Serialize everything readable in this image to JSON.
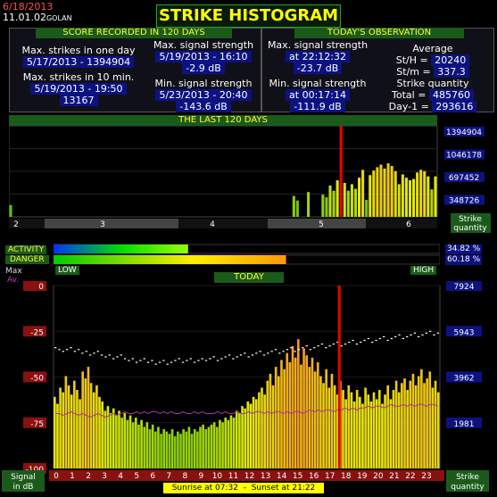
{
  "header": {
    "date": "6/18/2013",
    "version": "11.01.02",
    "location": "GOLAN",
    "title": "STRIKE HISTOGRAM"
  },
  "score": {
    "heading": "SCORE RECORDED IN 120 DAYS",
    "max_one_day_label": "Max. strikes in one day",
    "max_one_day_value": "5/17/2013 - 1394904",
    "max_10min_label": "Max. strikes in 10 min.",
    "max_10min_date": "5/19/2013 - 19:50",
    "max_10min_value": "13167",
    "max_signal_label": "Max. signal strength",
    "max_signal_date": "5/19/2013 - 16:10",
    "max_signal_value": "-2.9 dB",
    "min_signal_label": "Min. signal strength",
    "min_signal_date": "5/23/2013 - 20:40",
    "min_signal_value": "-143.6 dB"
  },
  "today_obs": {
    "heading": "TODAY'S OBSERVATION",
    "max_signal_label": "Max. signal strength",
    "max_signal_time": "at 22:12:32",
    "max_signal_value": "-23.7 dB",
    "min_signal_label": "Min. signal strength",
    "min_signal_time": "at 00:17:14",
    "min_signal_value": "-111.9 dB",
    "average_label": "Average",
    "sth_label": "St/H",
    "sth_value": "20240",
    "stm_label": "St/m",
    "stm_value": "337.3",
    "quantity_label": "Strike quantity",
    "total_label": "Total",
    "total_value": "485760",
    "day1_label": "Day-1",
    "day1_value": "293616"
  },
  "activity": {
    "activity_label": "ACTIVITY",
    "danger_label": "DANGER",
    "activity_value": 34.82,
    "danger_value": 60.18,
    "activity_text": "34.82 %",
    "danger_text": "60.18 %",
    "low_label": "LOW",
    "high_label": "HIGH"
  },
  "footer": {
    "sunrise_label": "Sunrise at",
    "sunrise_time": "07:32",
    "sunset_label": "Sunset at",
    "sunset_time": "21:22"
  },
  "chart_data": [
    {
      "type": "bar",
      "title": "THE LAST 120 DAYS",
      "ylabel": "Strike quantity",
      "ylim": [
        0,
        1394904
      ],
      "y_ticks": [
        "1394904",
        "1046178",
        "697452",
        "348726"
      ],
      "x_ticks": [
        "2",
        "3",
        "4",
        "5",
        "6"
      ],
      "max_day_marker": 1394904,
      "values": [
        180000,
        0,
        0,
        0,
        0,
        0,
        0,
        0,
        0,
        0,
        0,
        0,
        0,
        0,
        0,
        0,
        0,
        0,
        0,
        0,
        0,
        0,
        0,
        0,
        0,
        0,
        0,
        0,
        0,
        0,
        0,
        0,
        0,
        0,
        0,
        0,
        0,
        0,
        0,
        0,
        0,
        0,
        0,
        0,
        0,
        0,
        0,
        0,
        0,
        0,
        0,
        0,
        0,
        0,
        0,
        0,
        0,
        0,
        0,
        0,
        0,
        0,
        0,
        0,
        0,
        0,
        0,
        0,
        0,
        0,
        0,
        0,
        0,
        0,
        0,
        0,
        0,
        0,
        320000,
        250000,
        0,
        0,
        380000,
        0,
        0,
        0,
        340000,
        300000,
        480000,
        400000,
        560000,
        1394904,
        520000,
        400000,
        500000,
        430000,
        600000,
        720000,
        260000,
        640000,
        710000,
        760000,
        800000,
        740000,
        820000,
        780000,
        700000,
        500000,
        650000,
        600000,
        560000,
        580000,
        680000,
        720000,
        700000,
        620000,
        420000,
        620000
      ]
    },
    {
      "type": "bar",
      "title": "TODAY",
      "xlabel": "Signal in dB",
      "ylabel": "Strike quantity",
      "y_ticks_left": [
        "0",
        "-25",
        "-50",
        "-75",
        "-100"
      ],
      "y_ticks_right": [
        "7924",
        "5943",
        "3962",
        "1981"
      ],
      "ylim_db": [
        -100,
        0
      ],
      "ylim_quantity": [
        0,
        7924
      ],
      "max_legend": "Max",
      "avg_legend": "Av.",
      "x_ticks": [
        "0",
        "1",
        "2",
        "3",
        "4",
        "5",
        "6",
        "7",
        "8",
        "9",
        "10",
        "11",
        "12",
        "13",
        "14",
        "15",
        "16",
        "17",
        "18",
        "19",
        "20",
        "21",
        "22",
        "23"
      ],
      "current_hour": 17.75,
      "values": [
        3100,
        2800,
        3500,
        3300,
        4000,
        3600,
        3200,
        3800,
        3400,
        3000,
        4200,
        3900,
        4400,
        3700,
        3300,
        3600,
        3100,
        2900,
        2500,
        2700,
        2400,
        2600,
        2300,
        2500,
        2200,
        2400,
        2100,
        2300,
        2000,
        2200,
        1900,
        2100,
        1800,
        2000,
        1700,
        1900,
        1600,
        1800,
        1500,
        1700,
        1600,
        1500,
        1700,
        1400,
        1600,
        1500,
        1700,
        1600,
        1800,
        1500,
        1700,
        1600,
        1800,
        1900,
        1700,
        1800,
        1900,
        2000,
        1800,
        2100,
        2000,
        2200,
        2100,
        2300,
        2200,
        2500,
        2400,
        2700,
        2600,
        2900,
        2800,
        3100,
        3000,
        3300,
        3500,
        3200,
        3800,
        4100,
        3600,
        4400,
        4000,
        4700,
        4300,
        5000,
        4600,
        5300,
        4800,
        5600,
        4500,
        5200,
        4900,
        4400,
        4800,
        4200,
        4600,
        4000,
        3700,
        4300,
        3500,
        4100,
        3600,
        3200,
        3800,
        3400,
        3000,
        3600,
        3300,
        2900,
        3400,
        3100,
        2800,
        3500,
        3200,
        2900,
        3300,
        3000,
        3400,
        2800,
        3200,
        3600,
        3000,
        3400,
        3800,
        3300,
        3700,
        3900,
        3400,
        3800,
        4100,
        3600,
        4000,
        4300,
        3700,
        3900,
        4200,
        3500,
        3800,
        3300
      ],
      "max_signal_db": [
        -34,
        -35,
        -36,
        -35,
        -34,
        -36,
        -35,
        -37,
        -36,
        -38,
        -37,
        -36,
        -38,
        -39,
        -38,
        -40,
        -39,
        -38,
        -40,
        -41,
        -40,
        -42,
        -41,
        -40,
        -42,
        -41,
        -43,
        -42,
        -41,
        -43,
        -42,
        -41,
        -40,
        -42,
        -41,
        -40,
        -42,
        -41,
        -40,
        -41,
        -40,
        -39,
        -41,
        -40,
        -39,
        -38,
        -40,
        -39,
        -38,
        -37,
        -39,
        -38,
        -37,
        -36,
        -38,
        -37,
        -36,
        -35,
        -37,
        -36,
        -35,
        -34,
        -36,
        -35,
        -34,
        -33,
        -35,
        -34,
        -33,
        -32,
        -34,
        -33,
        -32,
        -31,
        -33,
        -32,
        -31,
        -30,
        -32,
        -31,
        -30,
        -29,
        -31,
        -30,
        -29,
        -28,
        -30,
        -29,
        -28,
        -27,
        -29,
        -28,
        -27,
        -26,
        -28,
        -27,
        -26,
        -25,
        -27,
        -26
      ],
      "avg_signal_db": [
        -70,
        -70,
        -71,
        -70,
        -69,
        -70,
        -71,
        -70,
        -71,
        -72,
        -71,
        -70,
        -71,
        -72,
        -71,
        -70,
        -71,
        -70,
        -69,
        -70,
        -70,
        -69,
        -70,
        -69,
        -70,
        -69,
        -69,
        -70,
        -69,
        -70,
        -69,
        -70,
        -70,
        -69,
        -70,
        -70,
        -69,
        -70,
        -69,
        -70,
        -70,
        -70,
        -69,
        -70,
        -69,
        -70,
        -70,
        -69,
        -70,
        -70,
        -69,
        -70,
        -69,
        -69,
        -70,
        -69,
        -70,
        -69,
        -69,
        -70,
        -69,
        -70,
        -69,
        -69,
        -70,
        -69,
        -68,
        -69,
        -68,
        -69,
        -68,
        -68,
        -69,
        -68,
        -68,
        -67,
        -68,
        -67,
        -68,
        -67,
        -67,
        -66,
        -67,
        -66,
        -66,
        -67,
        -66,
        -65,
        -66,
        -66,
        -65,
        -66,
        -65,
        -66,
        -65,
        -65,
        -66,
        -65,
        -65,
        -66
      ]
    }
  ]
}
